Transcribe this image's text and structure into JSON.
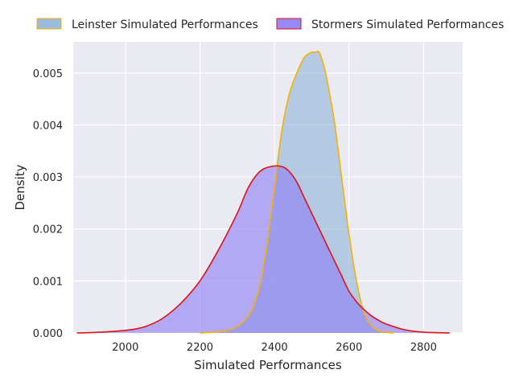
{
  "chart_data": {
    "type": "area",
    "xlabel": "Simulated Performances",
    "ylabel": "Density",
    "xlim": [
      1860,
      2905
    ],
    "ylim": [
      0,
      0.0056
    ],
    "xticks": [
      2000,
      2200,
      2400,
      2600,
      2800
    ],
    "xtick_labels": [
      "2000",
      "2200",
      "2400",
      "2600",
      "2800"
    ],
    "yticks": [
      0,
      0.001,
      0.002,
      0.003,
      0.004,
      0.005
    ],
    "ytick_labels": [
      "0.000",
      "0.001",
      "0.002",
      "0.003",
      "0.004",
      "0.005"
    ],
    "grid": true,
    "legend_position": "top",
    "series": [
      {
        "name": "Leinster Simulated Performances",
        "fill": "#8fb4d8",
        "line": "#f5b000",
        "x": [
          2200,
          2250,
          2280,
          2300,
          2320,
          2340,
          2360,
          2380,
          2400,
          2420,
          2440,
          2460,
          2480,
          2500,
          2510,
          2520,
          2530,
          2540,
          2560,
          2580,
          2600,
          2620,
          2640,
          2660,
          2680,
          2700,
          2720
        ],
        "y": [
          0.0,
          2e-05,
          6e-05,
          0.00012,
          0.00024,
          0.00045,
          0.0009,
          0.0017,
          0.0028,
          0.0039,
          0.0046,
          0.005,
          0.0053,
          0.0054,
          0.0054,
          0.0054,
          0.0052,
          0.0049,
          0.0041,
          0.003,
          0.0019,
          0.001,
          0.0004,
          0.00014,
          4e-05,
          1e-05,
          0.0
        ]
      },
      {
        "name": "Stormers Simulated Performances",
        "fill": "#8c7cf5",
        "line": "#e0101a",
        "x": [
          1870,
          1900,
          1950,
          2000,
          2030,
          2060,
          2100,
          2150,
          2200,
          2250,
          2300,
          2330,
          2360,
          2390,
          2420,
          2440,
          2460,
          2480,
          2500,
          2520,
          2540,
          2560,
          2580,
          2600,
          2620,
          2640,
          2660,
          2680,
          2700,
          2750,
          2800,
          2850,
          2870
        ],
        "y": [
          0.0,
          5e-06,
          2e-05,
          5e-05,
          8e-05,
          0.00014,
          0.00028,
          0.00058,
          0.001,
          0.0016,
          0.0023,
          0.0028,
          0.0031,
          0.0032,
          0.0032,
          0.0031,
          0.0029,
          0.0026,
          0.0023,
          0.002,
          0.0017,
          0.0014,
          0.0011,
          0.0008,
          0.0006,
          0.00045,
          0.00033,
          0.00024,
          0.00017,
          6e-05,
          1.5e-05,
          3e-06,
          0.0
        ]
      }
    ]
  }
}
